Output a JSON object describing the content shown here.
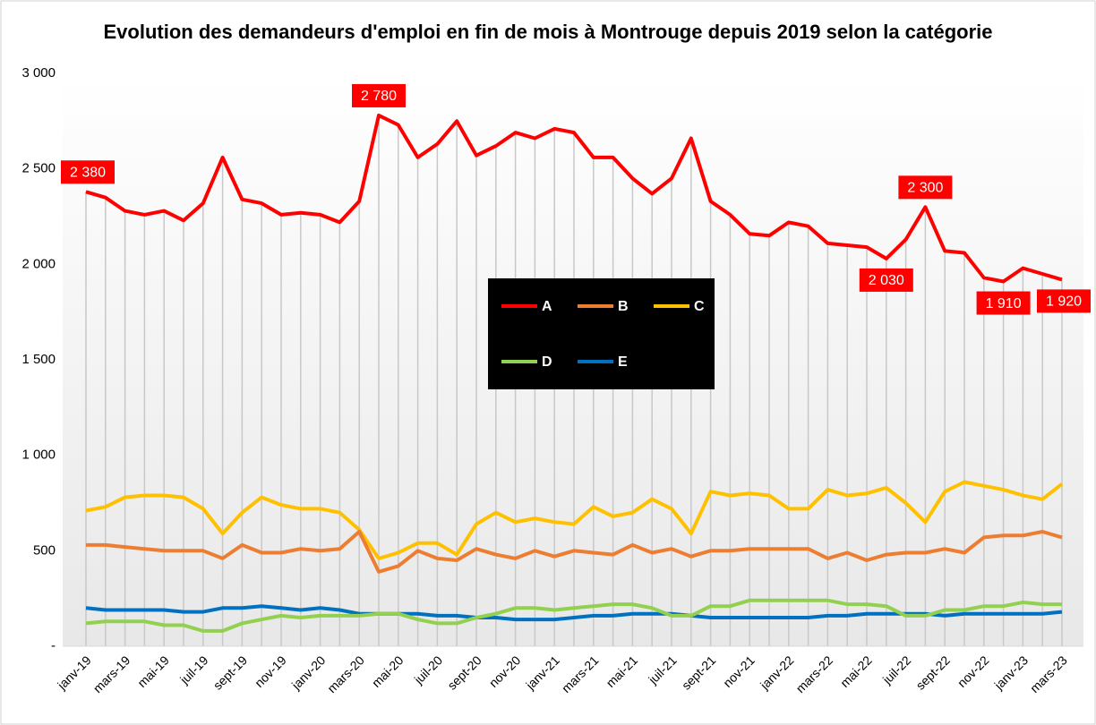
{
  "chart_data": {
    "type": "line",
    "title": "Evolution des demandeurs  d'emploi en fin de mois à Montrouge depuis 2019 selon la catégorie",
    "categories": [
      "janv-19",
      null,
      "mars-19",
      null,
      "mai-19",
      null,
      "juil-19",
      null,
      "sept-19",
      null,
      "nov-19",
      null,
      "janv-20",
      null,
      "mars-20",
      null,
      "mai-20",
      null,
      "juil-20",
      null,
      "sept-20",
      null,
      "nov-20",
      null,
      "janv-21",
      null,
      "mars-21",
      null,
      "mai-21",
      null,
      "juil-21",
      null,
      "sept-21",
      null,
      "nov-21",
      null,
      "janv-22",
      null,
      "mars-22",
      null,
      "mai-22",
      null,
      "juil-22",
      null,
      "sept-22",
      null,
      "nov-22",
      null,
      "janv-23",
      null,
      "mars-23"
    ],
    "series": [
      {
        "name": "A",
        "color": "#ff0000",
        "values": [
          2380,
          2350,
          2280,
          2260,
          2280,
          2230,
          2320,
          2560,
          2340,
          2320,
          2260,
          2270,
          2260,
          2220,
          2330,
          2780,
          2730,
          2560,
          2630,
          2750,
          2570,
          2620,
          2690,
          2660,
          2710,
          2690,
          2560,
          2560,
          2450,
          2370,
          2450,
          2660,
          2330,
          2260,
          2160,
          2150,
          2220,
          2200,
          2110,
          2100,
          2090,
          2030,
          2130,
          2300,
          2070,
          2060,
          1930,
          1910,
          1980,
          1950,
          1920
        ],
        "value_labels": [
          "2 380",
          null,
          null,
          null,
          null,
          null,
          null,
          null,
          null,
          null,
          null,
          null,
          null,
          null,
          null,
          "2 780",
          null,
          null,
          null,
          null,
          null,
          null,
          null,
          null,
          null,
          null,
          null,
          null,
          null,
          null,
          null,
          null,
          null,
          null,
          null,
          null,
          null,
          null,
          null,
          null,
          null,
          "2 030",
          null,
          "2 300",
          null,
          null,
          null,
          "1 910",
          null,
          null,
          "1 920"
        ]
      },
      {
        "name": "B",
        "color": "#ed7d31",
        "values": [
          530,
          530,
          520,
          510,
          500,
          500,
          500,
          460,
          530,
          490,
          490,
          510,
          500,
          510,
          600,
          390,
          420,
          500,
          460,
          450,
          510,
          480,
          460,
          500,
          470,
          500,
          490,
          480,
          530,
          490,
          510,
          470,
          500,
          500,
          510,
          510,
          510,
          510,
          460,
          490,
          450,
          480,
          490,
          490,
          510,
          490,
          570,
          580,
          580,
          600,
          570
        ]
      },
      {
        "name": "C",
        "color": "#ffc000",
        "values": [
          710,
          730,
          780,
          790,
          790,
          780,
          720,
          590,
          700,
          780,
          740,
          720,
          720,
          700,
          610,
          460,
          490,
          540,
          540,
          480,
          640,
          700,
          650,
          670,
          650,
          640,
          730,
          680,
          700,
          770,
          720,
          590,
          810,
          790,
          800,
          790,
          720,
          720,
          820,
          790,
          800,
          830,
          750,
          650,
          810,
          860,
          840,
          820,
          790,
          770,
          850
        ]
      },
      {
        "name": "D",
        "color": "#92d050",
        "values": [
          120,
          130,
          130,
          130,
          110,
          110,
          80,
          80,
          120,
          140,
          160,
          150,
          160,
          160,
          160,
          170,
          170,
          140,
          120,
          120,
          150,
          170,
          200,
          200,
          190,
          200,
          210,
          220,
          220,
          200,
          160,
          160,
          210,
          210,
          240,
          240,
          240,
          240,
          240,
          220,
          220,
          210,
          160,
          160,
          190,
          190,
          210,
          210,
          230,
          220,
          220
        ]
      },
      {
        "name": "E",
        "color": "#0070c0",
        "values": [
          200,
          190,
          190,
          190,
          190,
          180,
          180,
          200,
          200,
          210,
          200,
          190,
          200,
          190,
          170,
          170,
          170,
          170,
          160,
          160,
          150,
          150,
          140,
          140,
          140,
          150,
          160,
          160,
          170,
          170,
          170,
          160,
          150,
          150,
          150,
          150,
          150,
          150,
          160,
          160,
          170,
          170,
          170,
          170,
          160,
          170,
          170,
          170,
          170,
          170,
          180
        ]
      }
    ],
    "ylim": [
      0,
      3000
    ],
    "yticks": [
      {
        "value": 0,
        "label": "-"
      },
      500,
      {
        "value": 1000,
        "label": "1 000"
      },
      {
        "value": 1500,
        "label": "1 500"
      },
      {
        "value": 2000,
        "label": "2 000"
      },
      {
        "value": 2500,
        "label": "2 500"
      },
      {
        "value": 3000,
        "label": "3 000"
      }
    ],
    "legend": "center"
  }
}
